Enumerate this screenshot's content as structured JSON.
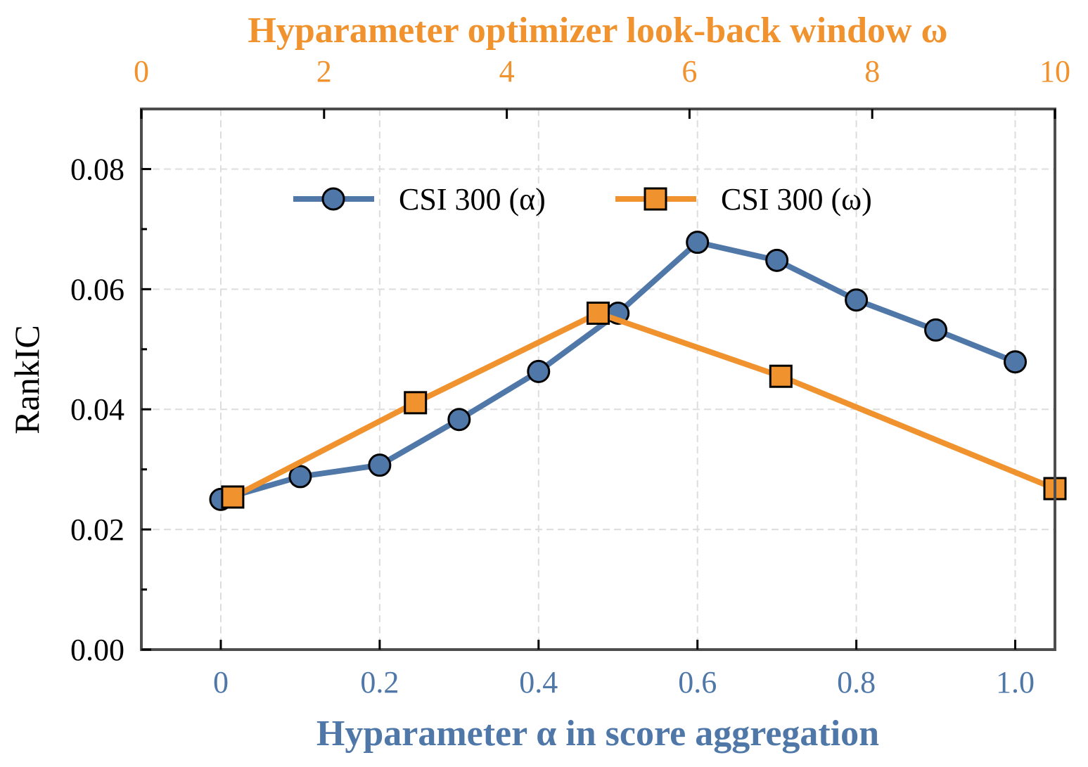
{
  "chart_data": {
    "type": "line",
    "ylabel": "RankIC",
    "ylim": [
      0,
      0.09
    ],
    "yticks": [
      "0.00",
      "0.02",
      "0.04",
      "0.06",
      "0.08"
    ],
    "bottom_axis": {
      "label": "Hyparameter α in score aggregation",
      "color": "#4f77a8",
      "ticks": [
        "0",
        "0.2",
        "0.4",
        "0.6",
        "0.8",
        "1.0"
      ],
      "range": [
        -0.1,
        1.05
      ]
    },
    "top_axis": {
      "label": "Hyparameter optimizer look-back window ω",
      "color": "#f0922e",
      "ticks": [
        "0",
        "2",
        "4",
        "6",
        "8",
        "10"
      ],
      "range": [
        0,
        10
      ]
    },
    "grid": true,
    "legend_position": "top-center",
    "series": [
      {
        "name": "CSI 300 (α)",
        "axis": "bottom",
        "marker": "circle",
        "color": "#4f77a8",
        "x": [
          0,
          0.1,
          0.2,
          0.3,
          0.4,
          0.5,
          0.6,
          0.7,
          0.8,
          0.9,
          1.0
        ],
        "y": [
          0.025,
          0.0288,
          0.0307,
          0.0383,
          0.0463,
          0.056,
          0.0678,
          0.0648,
          0.0582,
          0.0532,
          0.0479
        ]
      },
      {
        "name": "CSI 300 (ω)",
        "axis": "top",
        "marker": "square",
        "color": "#f0922e",
        "x": [
          1,
          3,
          5,
          7,
          10
        ],
        "y": [
          0.0254,
          0.0411,
          0.056,
          0.0455,
          0.0268
        ]
      }
    ]
  }
}
